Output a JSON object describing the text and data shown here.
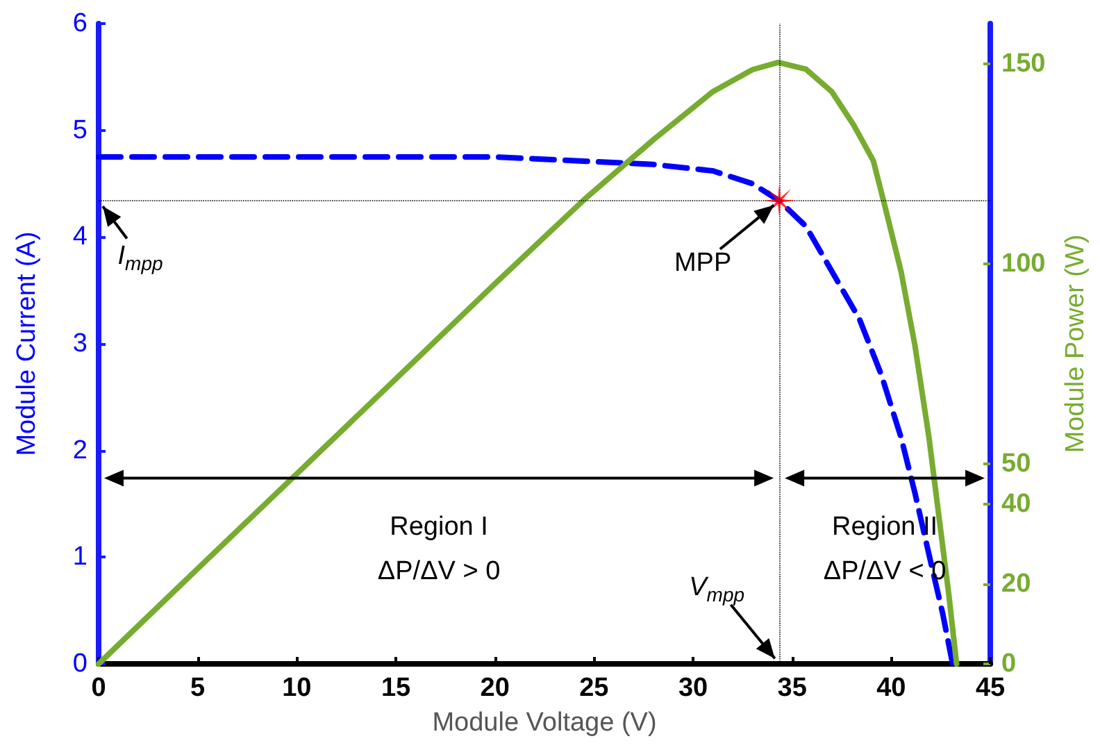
{
  "chart_data": {
    "type": "line",
    "xlabel": "Module Voltage (V)",
    "ylabel": "Module Current (A)",
    "y2label": "Module Power (W)",
    "xlim": [
      0,
      45
    ],
    "xticks": [
      0,
      5,
      10,
      15,
      20,
      25,
      30,
      35,
      40,
      45
    ],
    "ylim": [
      0,
      6
    ],
    "yticks": [
      0,
      1,
      2,
      3,
      4,
      5,
      6
    ],
    "y2lim": [
      0,
      160
    ],
    "y2ticks": [
      0,
      20,
      40,
      50,
      100,
      150
    ],
    "series": [
      {
        "color": "#0000ff",
        "line_style": "dashed",
        "marker": "none",
        "x": [
          0,
          5,
          10,
          15,
          20,
          24.6,
          28,
          31,
          33,
          34.35,
          35.7,
          37,
          38.4,
          39.5,
          40.5,
          41.2,
          41.9,
          42.6,
          43.1
        ],
        "values": [
          4.75,
          4.75,
          4.75,
          4.75,
          4.75,
          4.71,
          4.68,
          4.62,
          4.5,
          4.34,
          4.1,
          3.68,
          3.23,
          2.71,
          2.12,
          1.6,
          1.03,
          0.47,
          0
        ]
      },
      {
        "axis": "y2",
        "color": "#77ac30",
        "line_style": "solid",
        "marker": "none",
        "x": [
          0,
          5,
          10,
          15,
          20,
          24.5,
          28,
          31,
          33,
          34.3,
          35.7,
          37,
          38.1,
          39.1,
          39.7,
          40.5,
          41.2,
          41.9,
          42.4,
          42.9,
          43.3
        ],
        "values": [
          0,
          23.8,
          47.5,
          71.2,
          95,
          116,
          131,
          143,
          148.5,
          150.3,
          148.6,
          143,
          134.7,
          125.7,
          114,
          98,
          79.5,
          56.8,
          37.2,
          17.6,
          0
        ]
      },
      {
        "type": "scatter",
        "color": "#ff0000",
        "marker": "star",
        "x": [
          34.35
        ],
        "values": [
          4.34
        ]
      }
    ],
    "ref_lines": [
      {
        "axis": "x",
        "value": 34.35,
        "color": "#000000",
        "line_style": "dotted"
      },
      {
        "axis": "y",
        "value": 4.34,
        "color": "#000000",
        "line_style": "dotted"
      }
    ],
    "annotations": [
      "I$_{mpp}$",
      "MPP",
      "V$_{mpp}$",
      "Region I",
      "ΔP/ΔV > 0",
      "Region II",
      "ΔP/ΔV < 0"
    ]
  }
}
